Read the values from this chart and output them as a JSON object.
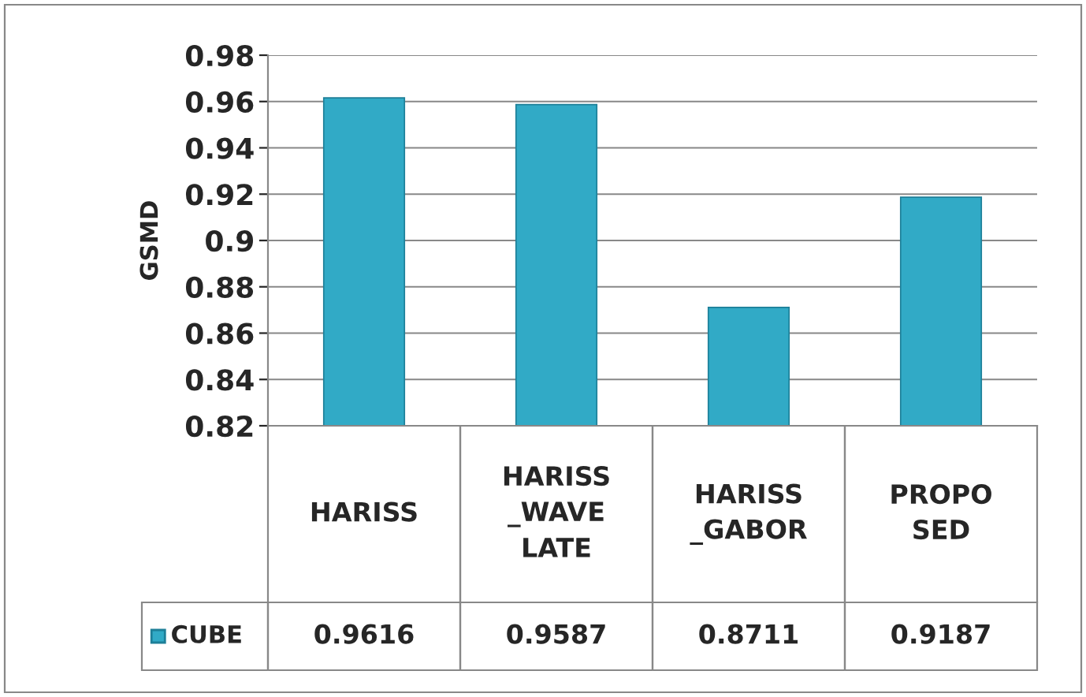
{
  "chart_data": {
    "type": "bar",
    "ylabel": "GSMD",
    "categories": [
      "HARISS",
      "HARISS_WAVELATE",
      "HARISS_GABOR",
      "PROPOSED"
    ],
    "series": [
      {
        "name": "CUBE",
        "color": "#31aac6",
        "values": [
          0.9616,
          0.9587,
          0.8711,
          0.9187
        ]
      }
    ],
    "ylim": [
      0.82,
      0.98
    ],
    "yticks": [
      0.82,
      0.84,
      0.86,
      0.88,
      {
        "value": 0.9,
        "label": "0.9"
      },
      0.92,
      0.94,
      0.96,
      0.98
    ],
    "grid": "y",
    "data_labels": true
  }
}
